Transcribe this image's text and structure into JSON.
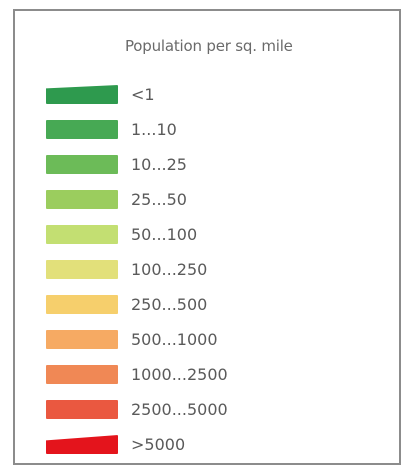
{
  "legend": {
    "title": "Population per sq. mile",
    "items": [
      {
        "label": "<1",
        "color": "#2e9a4e"
      },
      {
        "label": "1...10",
        "color": "#47a954"
      },
      {
        "label": "10...25",
        "color": "#6cbb58"
      },
      {
        "label": "25...50",
        "color": "#9bcd5e"
      },
      {
        "label": "50...100",
        "color": "#c3df72"
      },
      {
        "label": "100...250",
        "color": "#e2e07a"
      },
      {
        "label": "250...500",
        "color": "#f6cf6c"
      },
      {
        "label": "500...1000",
        "color": "#f6aa63"
      },
      {
        "label": "1000...2500",
        "color": "#f08855"
      },
      {
        "label": "2500...5000",
        "color": "#ea5840"
      },
      {
        "label": ">5000",
        "color": "#e4141c"
      }
    ]
  }
}
